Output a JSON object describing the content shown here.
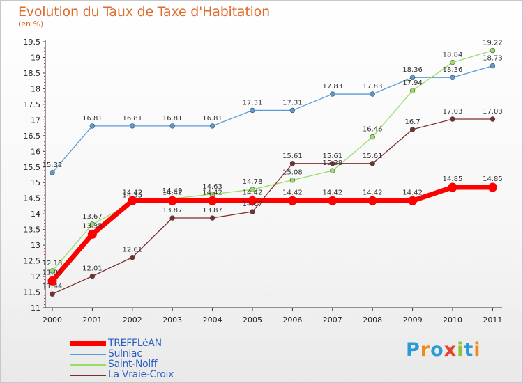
{
  "header": {
    "title": "Evolution du Taux de Taxe d'Habitation",
    "unit": "(en %)"
  },
  "logo": {
    "letters": [
      "P",
      "r",
      "o",
      "x",
      "i",
      "t",
      "i"
    ],
    "colors": [
      "#2a9ad6",
      "#f08a1e",
      "#2a9ad6",
      "#e8432a",
      "#8cc63f",
      "#2a9ad6",
      "#f08a1e"
    ]
  },
  "chart_data": {
    "type": "line",
    "x": [
      "2000",
      "2001",
      "2002",
      "2003",
      "2004",
      "2005",
      "2006",
      "2007",
      "2008",
      "2009",
      "2010",
      "2011"
    ],
    "ylim": [
      11,
      19.5
    ],
    "yticks": [
      "11",
      "11.5",
      "12",
      "12.5",
      "13",
      "13.5",
      "14",
      "14.5",
      "15",
      "15.5",
      "16",
      "16.5",
      "17",
      "17.5",
      "18",
      "18.5",
      "19",
      "19.5"
    ],
    "grid": false,
    "legend_position": "bottom-left",
    "series": [
      {
        "name": "TREFFLéAN",
        "color": "#ff0000",
        "values": [
          11.86,
          13.35,
          14.42,
          14.42,
          14.42,
          14.42,
          14.42,
          14.42,
          14.42,
          14.42,
          14.85,
          14.85
        ],
        "labels": [
          "11.86",
          "13.35",
          "14.42",
          "14.42",
          "14.42",
          "14.42",
          "14.42",
          "14.42",
          "14.42",
          "14.42",
          "14.85",
          "14.85"
        ]
      },
      {
        "name": "Sulniac",
        "color": "#5b9bd5",
        "values": [
          15.32,
          16.81,
          16.81,
          16.81,
          16.81,
          17.31,
          17.31,
          17.83,
          17.83,
          18.36,
          18.36,
          18.73
        ],
        "labels": [
          "15.32",
          "16.81",
          "16.81",
          "16.81",
          "16.81",
          "17.31",
          "17.31",
          "17.83",
          "17.83",
          "18.36",
          "18.36",
          "18.73"
        ]
      },
      {
        "name": "Saint-Nolff",
        "color": "#99dd66",
        "values": [
          12.18,
          13.67,
          14.35,
          14.49,
          14.63,
          14.78,
          15.08,
          15.38,
          16.46,
          17.94,
          18.84,
          19.22
        ],
        "labels": [
          "12.18",
          "13.67",
          "14.35",
          "14.49",
          "14.63",
          "14.78",
          "15.08",
          "15.38",
          "16.46",
          "17.94",
          "18.84",
          "19.22"
        ]
      },
      {
        "name": "La Vraie-Croix",
        "color": "#7a2e2e",
        "values": [
          11.44,
          12.01,
          12.61,
          13.87,
          13.87,
          14.07,
          15.61,
          15.61,
          15.61,
          16.7,
          17.03,
          17.03
        ],
        "labels": [
          "11.44",
          "12.01",
          "12.61",
          "13.87",
          "13.87",
          "14.07",
          "15.61",
          "15.61",
          "15.61",
          "16.7",
          "17.03",
          "17.03"
        ]
      }
    ]
  }
}
